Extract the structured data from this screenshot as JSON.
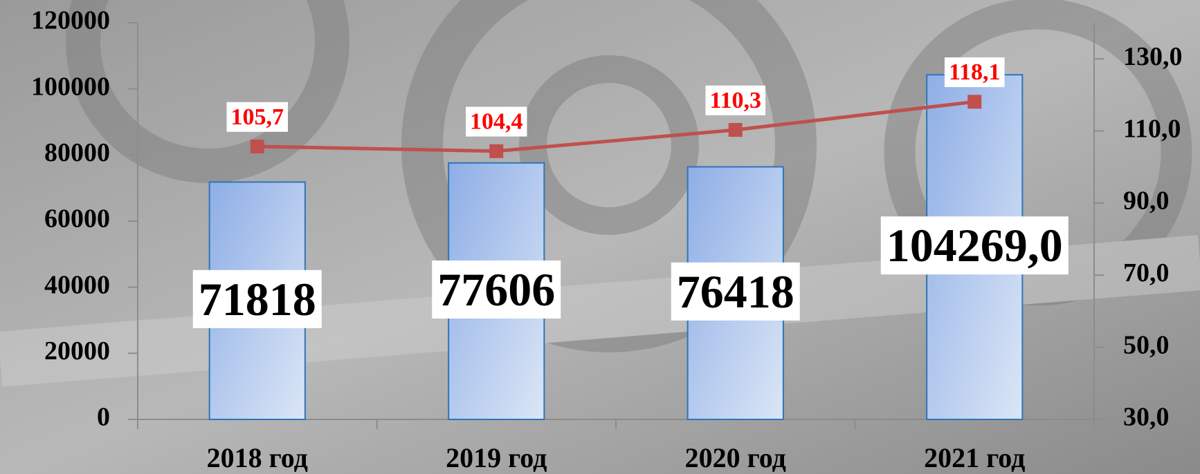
{
  "chart_data": {
    "type": "bar-line",
    "categories": [
      "2018 год",
      "2019 год",
      "2020 год",
      "2021 год"
    ],
    "series": [
      {
        "type": "bar",
        "color": "#2e75b6",
        "values": [
          71818,
          77606,
          76418,
          104269
        ],
        "value_labels": [
          "71818",
          "77606",
          "76418",
          "104269,0"
        ]
      },
      {
        "type": "line",
        "axis": "y2",
        "color": "#c0504d",
        "values": [
          105.7,
          104.4,
          110.3,
          118.1
        ],
        "value_labels": [
          "105,7",
          "104,4",
          "110,3",
          "118,1"
        ]
      }
    ],
    "ylim": [
      0,
      120000
    ],
    "yticks": [
      0,
      20000,
      40000,
      60000,
      80000,
      100000,
      120000
    ],
    "y2lim": [
      30,
      140
    ],
    "y2ticks": [
      {
        "value": 30,
        "label": "30,0"
      },
      {
        "value": 50,
        "label": "50,0"
      },
      {
        "value": 70,
        "label": "70,0"
      },
      {
        "value": 90,
        "label": "90,0"
      },
      {
        "value": 110,
        "label": "110,0"
      },
      {
        "value": 130,
        "label": "130,0"
      }
    ]
  }
}
